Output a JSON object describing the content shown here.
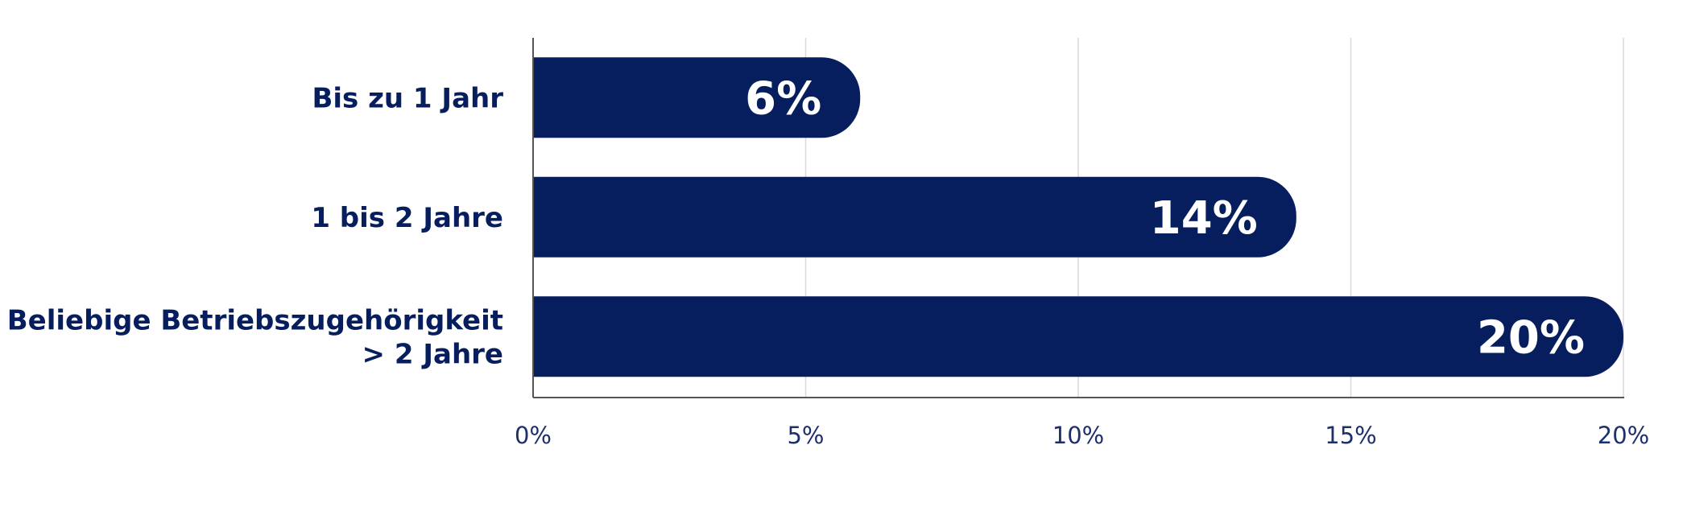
{
  "chart_data": {
    "type": "bar",
    "orientation": "horizontal",
    "title": "",
    "xlabel": "",
    "ylabel": "",
    "categories": [
      [
        "Bis zu 1 Jahr"
      ],
      [
        "1 bis 2 Jahre"
      ],
      [
        "Beliebige Betriebszugehörigkeit",
        "> 2 Jahre"
      ]
    ],
    "values": [
      6,
      14,
      20
    ],
    "value_labels": [
      "6%",
      "14%",
      "20%"
    ],
    "xlim": [
      0,
      20
    ],
    "xticks": [
      0,
      5,
      10,
      15,
      20
    ],
    "xtick_labels": [
      "0%",
      "5%",
      "10%",
      "15%",
      "20%"
    ],
    "grid": true,
    "legend": "none",
    "colors": {
      "bar": "#061d5e",
      "category_text": "#061d5e",
      "tick_text": "#1e2f6e",
      "value_text": "#ffffff",
      "grid": "#d9d9d9",
      "axis": "#555555"
    }
  }
}
